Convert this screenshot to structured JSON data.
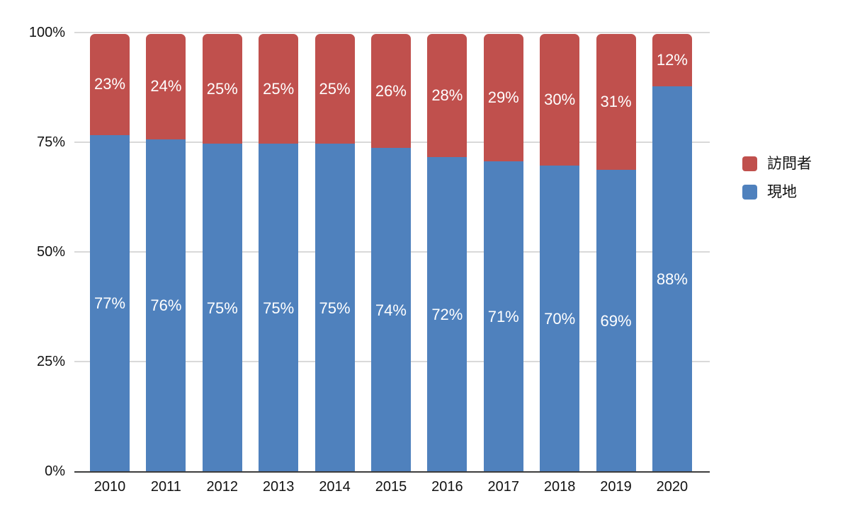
{
  "chart_data": {
    "type": "bar",
    "variant": "stacked-100-percent-column",
    "title": "",
    "categories": [
      "2010",
      "2011",
      "2012",
      "2013",
      "2014",
      "2015",
      "2016",
      "2017",
      "2018",
      "2019",
      "2020"
    ],
    "series": [
      {
        "name": "訪問者",
        "color": "#C0504D",
        "values": [
          23,
          24,
          25,
          25,
          25,
          26,
          28,
          29,
          30,
          31,
          12
        ]
      },
      {
        "name": "現地",
        "color": "#4F81BD",
        "values": [
          77,
          76,
          75,
          75,
          75,
          74,
          72,
          71,
          70,
          69,
          88
        ]
      }
    ],
    "y_ticks": [
      {
        "value": 0,
        "label": "0%"
      },
      {
        "value": 25,
        "label": "25%"
      },
      {
        "value": 50,
        "label": "50%"
      },
      {
        "value": 75,
        "label": "75%"
      },
      {
        "value": 100,
        "label": "100%"
      }
    ],
    "ylim": [
      0,
      100
    ],
    "grid": true,
    "gridline_color": "#d9d9d9",
    "axis_line_color": "#3d3d3d",
    "data_label_suffix": "%",
    "data_label_color": "#ffffff",
    "legend_position": "right"
  },
  "legend": {
    "items": [
      {
        "label": "訪問者",
        "color": "#C0504D"
      },
      {
        "label": "現地",
        "color": "#4F81BD"
      }
    ]
  }
}
